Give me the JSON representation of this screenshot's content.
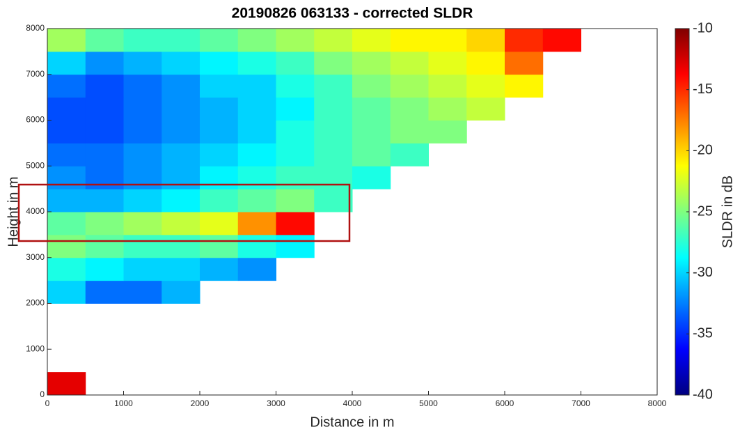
{
  "chart_data": {
    "type": "heatmap",
    "title": "20190826 063133 - corrected SLDR",
    "x_label": "Distance in m",
    "y_label": "Height in m",
    "colorbar_label": "SLDR in dB",
    "colormap": "jet",
    "clim": [
      -40,
      -10
    ],
    "cticks": [
      -40,
      -35,
      -30,
      -25,
      -20,
      -15,
      -10
    ],
    "xlim": [
      0,
      8000
    ],
    "ylim": [
      0,
      8000
    ],
    "xticks": [
      0,
      1000,
      2000,
      3000,
      4000,
      5000,
      6000,
      7000,
      8000
    ],
    "yticks": [
      0,
      1000,
      2000,
      3000,
      4000,
      5000,
      6000,
      7000,
      8000
    ],
    "x_bins": [
      0,
      500,
      1000,
      1500,
      2000,
      2500,
      3000,
      3500,
      4000,
      4500,
      5000,
      5500,
      6000,
      6500,
      7000,
      7500,
      8000
    ],
    "y_bins": [
      0,
      500,
      1000,
      1500,
      2000,
      2500,
      3000,
      3500,
      4000,
      4500,
      5000,
      5500,
      6000,
      6500,
      7000,
      7500,
      8000
    ],
    "values": [
      [
        -13,
        null,
        null,
        null,
        null,
        null,
        null,
        null,
        null,
        null,
        null,
        null,
        null,
        null,
        null,
        null
      ],
      [
        null,
        null,
        null,
        null,
        null,
        null,
        null,
        null,
        null,
        null,
        null,
        null,
        null,
        null,
        null,
        null
      ],
      [
        null,
        null,
        null,
        null,
        null,
        null,
        null,
        null,
        null,
        null,
        null,
        null,
        null,
        null,
        null,
        null
      ],
      [
        null,
        null,
        null,
        null,
        null,
        null,
        null,
        null,
        null,
        null,
        null,
        null,
        null,
        null,
        null,
        null
      ],
      [
        -30,
        -33,
        -33,
        -31,
        null,
        null,
        null,
        null,
        null,
        null,
        null,
        null,
        null,
        null,
        null,
        null
      ],
      [
        -28,
        -29,
        -30,
        -30,
        -31,
        -32,
        null,
        null,
        null,
        null,
        null,
        null,
        null,
        null,
        null,
        null
      ],
      [
        -25,
        -26,
        -27,
        -27,
        -26,
        -28,
        -29,
        null,
        null,
        null,
        null,
        null,
        null,
        null,
        null,
        null
      ],
      [
        -26,
        -25,
        -24,
        -23,
        -22,
        -18,
        -14,
        null,
        null,
        null,
        null,
        null,
        null,
        null,
        null,
        null
      ],
      [
        -31,
        -31,
        -30,
        -29,
        -27,
        -26,
        -25,
        -27,
        null,
        null,
        null,
        null,
        null,
        null,
        null,
        null
      ],
      [
        -32,
        -33,
        -32,
        -31,
        -29,
        -28,
        -27,
        -27,
        -28,
        null,
        null,
        null,
        null,
        null,
        null,
        null
      ],
      [
        -33,
        -33,
        -32,
        -31,
        -30,
        -29,
        -28,
        -27,
        -26,
        -27,
        null,
        null,
        null,
        null,
        null,
        null
      ],
      [
        -34,
        -34,
        -33,
        -32,
        -31,
        -30,
        -28,
        -27,
        -26,
        -25,
        -25,
        null,
        null,
        null,
        null,
        null
      ],
      [
        -34,
        -34,
        -33,
        -32,
        -31,
        -30,
        -29,
        -27,
        -26,
        -25,
        -24,
        -23,
        null,
        null,
        null,
        null
      ],
      [
        -33,
        -34,
        -33,
        -32,
        -30,
        -30,
        -28,
        -27,
        -25,
        -24,
        -23,
        -22,
        -21,
        null,
        null,
        null
      ],
      [
        -30,
        -32,
        -31,
        -30,
        -29,
        -28,
        -27,
        -25,
        -24,
        -23,
        -22,
        -21,
        -17,
        null,
        null,
        null
      ],
      [
        -24,
        -26,
        -27,
        -27,
        -26,
        -25,
        -24,
        -23,
        -22,
        -21,
        -21,
        -20,
        -15,
        -14,
        null,
        null
      ]
    ]
  }
}
